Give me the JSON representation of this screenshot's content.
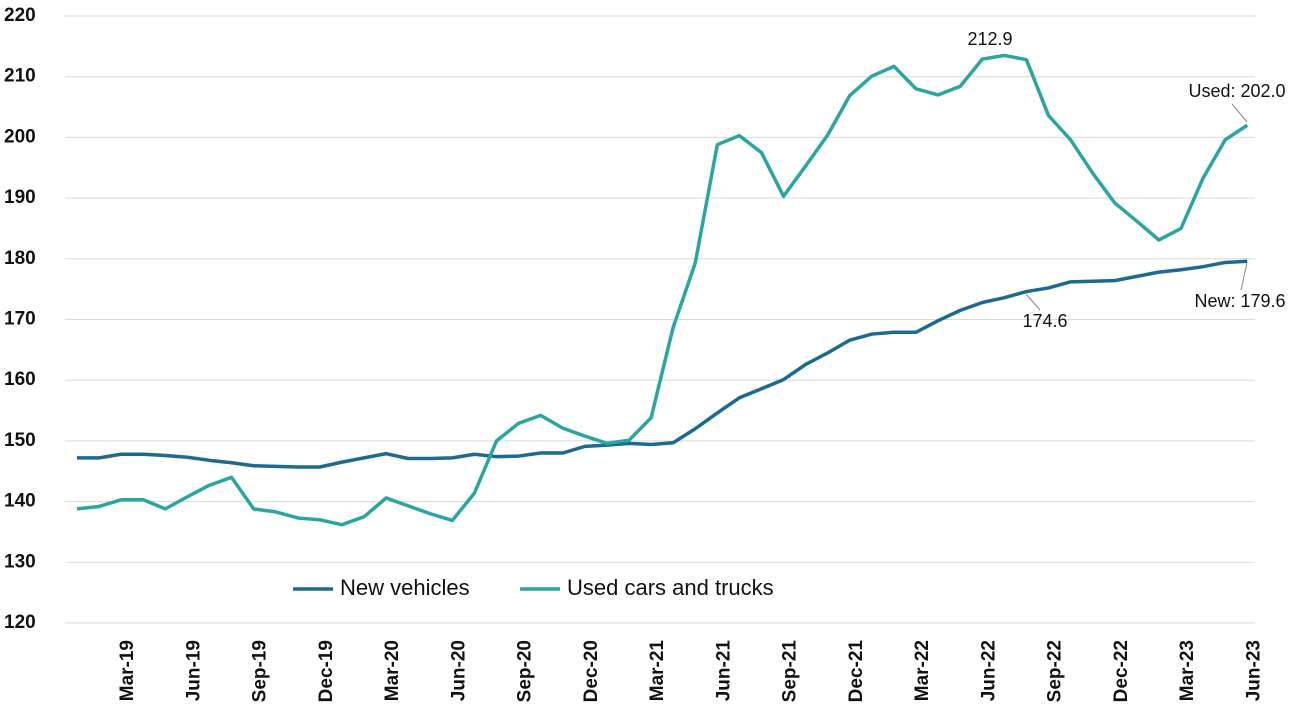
{
  "chart_data": {
    "type": "line",
    "categories": [
      null,
      null,
      "Mar-19",
      null,
      null,
      "Jun-19",
      null,
      null,
      "Sep-19",
      null,
      null,
      "Dec-19",
      null,
      null,
      "Mar-20",
      null,
      null,
      "Jun-20",
      null,
      null,
      "Sep-20",
      null,
      null,
      "Dec-20",
      null,
      null,
      "Mar-21",
      null,
      null,
      "Jun-21",
      null,
      null,
      "Sep-21",
      null,
      null,
      "Dec-21",
      null,
      null,
      "Mar-22",
      null,
      null,
      "Jun-22",
      null,
      null,
      "Sep-22",
      null,
      null,
      "Dec-22",
      null,
      null,
      "Mar-23",
      null,
      null,
      "Jun-23"
    ],
    "series": [
      {
        "name": "New vehicles",
        "color": "#1b6a8f",
        "values": [
          147.2,
          147.2,
          147.8,
          147.8,
          147.6,
          147.3,
          146.8,
          146.4,
          145.9,
          145.8,
          145.7,
          145.7,
          146.5,
          147.2,
          147.9,
          147.1,
          147.1,
          147.2,
          147.8,
          147.4,
          147.5,
          148.0,
          148.0,
          149.1,
          149.3,
          149.6,
          149.4,
          149.7,
          152.0,
          154.6,
          157.1,
          158.6,
          160.1,
          162.6,
          164.5,
          166.6,
          167.6,
          167.9,
          167.9,
          169.8,
          171.5,
          172.8,
          173.6,
          174.6,
          175.2,
          176.2,
          176.3,
          176.4,
          177.1,
          177.8,
          178.2,
          178.7,
          179.4,
          179.6
        ]
      },
      {
        "name": "Used cars and trucks",
        "color": "#2aa5a0",
        "values": [
          138.8,
          139.2,
          140.3,
          140.3,
          138.8,
          140.8,
          142.7,
          144.0,
          138.8,
          138.3,
          137.3,
          137.0,
          136.2,
          137.5,
          140.6,
          139.3,
          138.0,
          136.9,
          141.4,
          150.0,
          152.9,
          154.2,
          152.1,
          150.8,
          149.6,
          150.1,
          153.8,
          168.7,
          179.3,
          198.8,
          200.3,
          197.5,
          190.3,
          195.3,
          200.4,
          206.9,
          210.1,
          211.7,
          208.0,
          207.0,
          208.4,
          212.9,
          213.5,
          212.8,
          203.6,
          199.6,
          194.1,
          189.2,
          186.2,
          183.1,
          185.0,
          193.3,
          199.6,
          202.0
        ]
      }
    ],
    "annotations": [
      "212.9",
      "Used: 202.0",
      "New: 179.6",
      "174.6"
    ],
    "ylim": [
      120,
      220
    ],
    "yticks": [
      120,
      130,
      140,
      150,
      160,
      170,
      180,
      190,
      200,
      210,
      220
    ],
    "grid": true,
    "legend": "bottom-left"
  }
}
